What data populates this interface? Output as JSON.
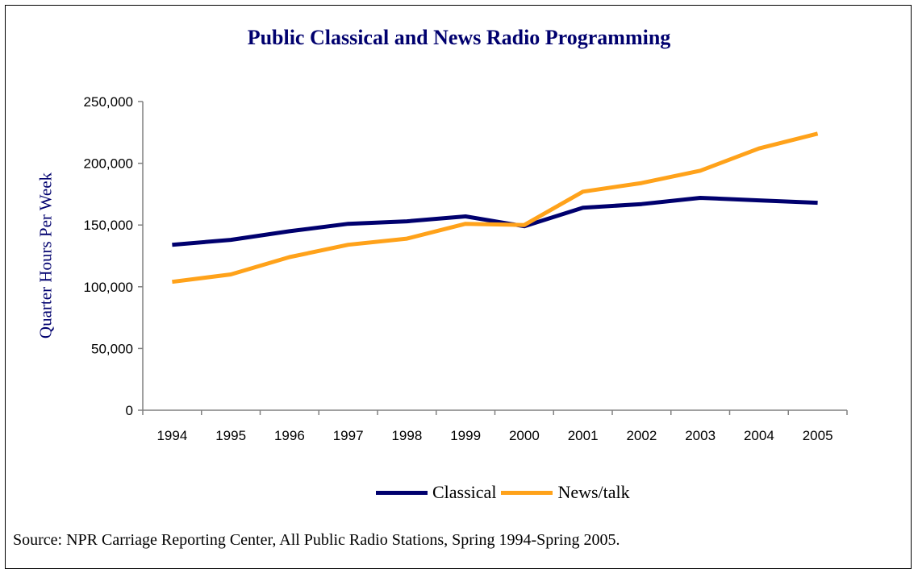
{
  "chart_data": {
    "type": "line",
    "title": "Public Classical and News Radio Programming",
    "xlabel": "",
    "ylabel": "Quarter Hours Per Week",
    "categories": [
      "1994",
      "1995",
      "1996",
      "1997",
      "1998",
      "1999",
      "2000",
      "2001",
      "2002",
      "2003",
      "2004",
      "2005"
    ],
    "ylim": [
      0,
      250000
    ],
    "yticks": [
      0,
      50000,
      100000,
      150000,
      200000,
      250000
    ],
    "ytick_labels": [
      "0",
      "50,000",
      "100,000",
      "150,000",
      "200,000",
      "250,000"
    ],
    "grid": false,
    "legend_position": "bottom",
    "series": [
      {
        "name": "Classical",
        "color": "#00006e",
        "values": [
          134000,
          138000,
          145000,
          151000,
          153000,
          157000,
          149000,
          164000,
          167000,
          172000,
          170000,
          168000
        ]
      },
      {
        "name": "News/talk",
        "color": "#ffa21a",
        "values": [
          104000,
          110000,
          124000,
          134000,
          139000,
          151000,
          150000,
          177000,
          184000,
          194000,
          212000,
          224000
        ]
      }
    ],
    "source": "Source: NPR Carriage Reporting Center, All Public Radio Stations, Spring 1994-Spring 2005."
  },
  "colors": {
    "title": "#00006e",
    "ylabel": "#00006e"
  }
}
